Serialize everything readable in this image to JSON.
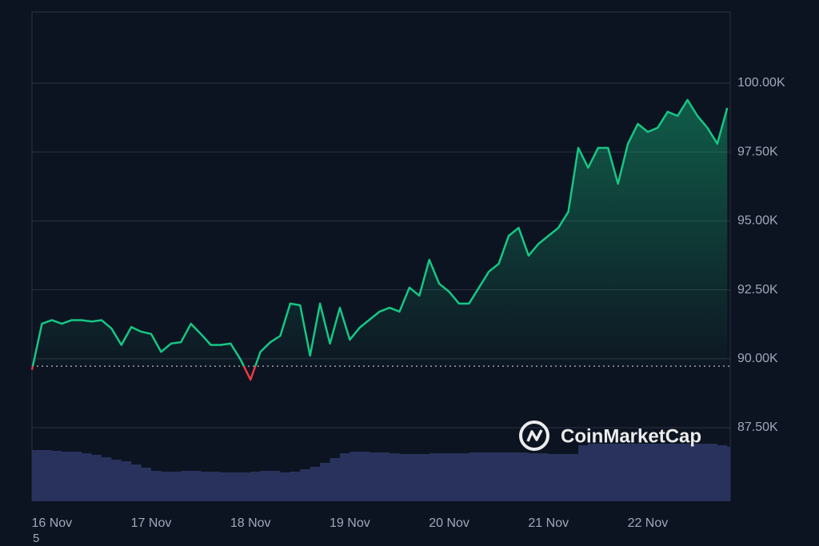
{
  "chart_data": {
    "type": "line",
    "x": [
      15.8,
      15.9,
      16.0,
      16.1,
      16.2,
      16.3,
      16.4,
      16.5,
      16.6,
      16.7,
      16.8,
      16.9,
      17.0,
      17.1,
      17.2,
      17.3,
      17.4,
      17.5,
      17.6,
      17.7,
      17.8,
      17.9,
      18.0,
      18.1,
      18.2,
      18.3,
      18.4,
      18.5,
      18.6,
      18.7,
      18.8,
      18.9,
      19.0,
      19.1,
      19.2,
      19.3,
      19.4,
      19.5,
      19.6,
      19.7,
      19.8,
      19.9,
      20.0,
      20.1,
      20.2,
      20.3,
      20.4,
      20.5,
      20.6,
      20.7,
      20.8,
      20.9,
      21.0,
      21.1,
      21.2,
      21.3,
      21.4,
      21.5,
      21.6,
      21.7,
      21.8,
      21.9,
      22.0,
      22.1,
      22.2,
      22.3,
      22.4,
      22.5,
      22.6,
      22.7,
      22.8
    ],
    "values": [
      89600,
      91270,
      91400,
      91270,
      91400,
      91400,
      91350,
      91400,
      91100,
      90500,
      91150,
      90980,
      90900,
      90250,
      90550,
      90600,
      91270,
      90900,
      90500,
      90500,
      90550,
      89970,
      89240,
      90250,
      90600,
      90830,
      92000,
      91940,
      90110,
      92000,
      90550,
      91850,
      90690,
      91130,
      91420,
      91710,
      91850,
      91710,
      92580,
      92290,
      93590,
      92720,
      92430,
      92000,
      92000,
      92580,
      93160,
      93450,
      94460,
      94750,
      93740,
      94170,
      94460,
      94750,
      95330,
      97650,
      96930,
      97650,
      97650,
      96350,
      97800,
      98520,
      98230,
      98380,
      98960,
      98810,
      99390,
      98810,
      98380,
      97800,
      99100
    ],
    "volume": [
      64,
      64,
      63,
      62,
      62,
      60,
      58,
      55,
      52,
      50,
      46,
      42,
      38,
      37,
      37,
      38,
      38,
      37,
      37,
      36,
      36,
      36,
      37,
      38,
      38,
      36,
      37,
      40,
      43,
      48,
      54,
      60,
      62,
      62,
      61,
      61,
      60,
      59,
      59,
      59,
      60,
      60,
      60,
      60,
      61,
      61,
      61,
      61,
      61,
      61,
      60,
      60,
      59,
      59,
      59,
      70,
      72,
      72,
      72,
      72,
      72,
      72,
      72,
      72,
      72,
      72,
      72,
      72,
      72,
      70,
      68
    ],
    "baseline": 89730,
    "up_color": "#16c784",
    "down_color": "#ea3943",
    "volume_color": "#2b3563",
    "xlim": [
      15.8,
      22.83
    ],
    "xticks": [
      {
        "value": 16,
        "label": "16 Nov"
      },
      {
        "value": 17,
        "label": "17 Nov"
      },
      {
        "value": 18,
        "label": "18 Nov"
      },
      {
        "value": 19,
        "label": "19 Nov"
      },
      {
        "value": 20,
        "label": "20 Nov"
      },
      {
        "value": 21,
        "label": "21 Nov"
      },
      {
        "value": 22,
        "label": "22 Nov"
      }
    ],
    "ylim": [
      84830,
      102580
    ],
    "yticks": [
      {
        "value": 87500,
        "label": "87.50K"
      },
      {
        "value": 90000,
        "label": "90.00K"
      },
      {
        "value": 92500,
        "label": "92.50K"
      },
      {
        "value": 95000,
        "label": "95.00K"
      },
      {
        "value": 97500,
        "label": "97.50K"
      },
      {
        "value": 100000,
        "label": "100.00K"
      }
    ],
    "grid": true,
    "watermark": "CoinMarketCap",
    "footnote": "5"
  }
}
